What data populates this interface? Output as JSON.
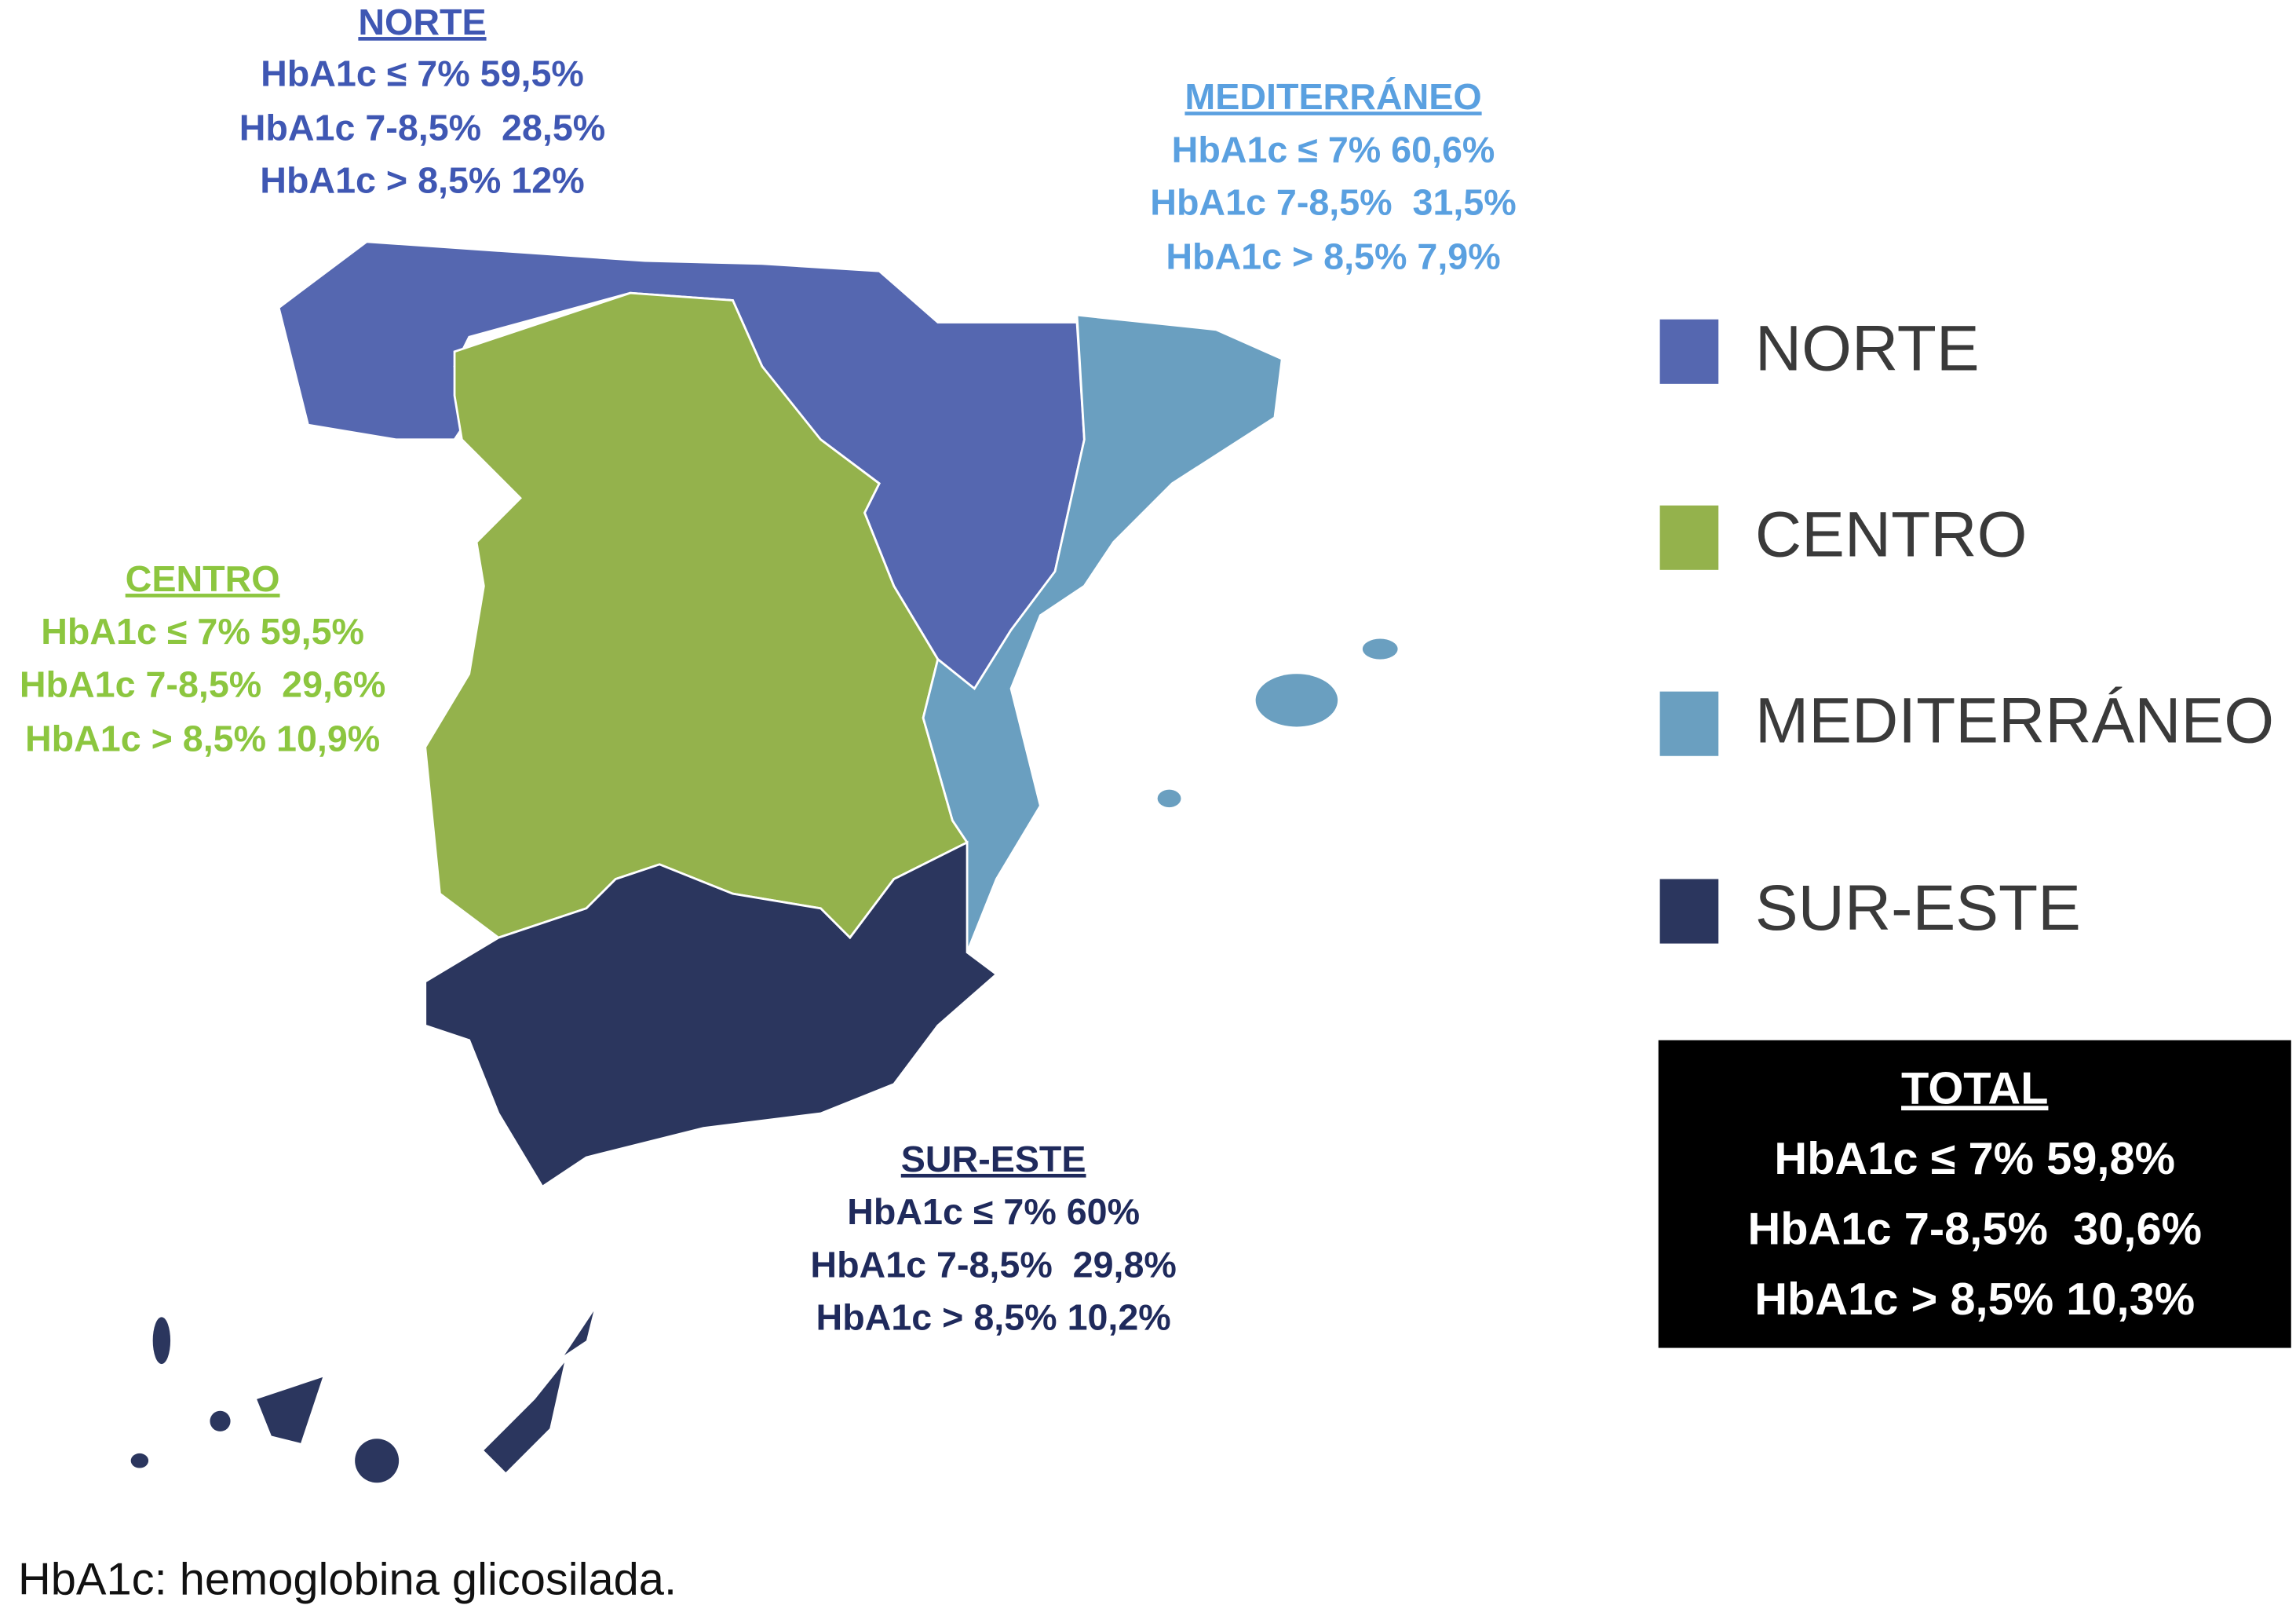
{
  "regions": [
    {
      "name": "NORTE",
      "lines": [
        "HbA1c ≤ 7% 59,5%",
        "HbA1c 7-8,5%  28,5%",
        "HbA1c > 8,5% 12%"
      ]
    },
    {
      "name": "MEDITERRÁNEO",
      "lines": [
        "HbA1c ≤ 7% 60,6%",
        "HbA1c 7-8,5%  31,5%",
        "HbA1c > 8,5% 7,9%"
      ]
    },
    {
      "name": "CENTRO",
      "lines": [
        "HbA1c ≤ 7% 59,5%",
        "HbA1c 7-8,5%  29,6%",
        "HbA1c > 8,5% 10,9%"
      ]
    },
    {
      "name": "SUR-ESTE",
      "lines": [
        "HbA1c ≤ 7% 60%",
        "HbA1c 7-8,5%  29,8%",
        "HbA1c > 8,5% 10,2%"
      ]
    }
  ],
  "legend": [
    "NORTE",
    "CENTRO",
    "MEDITERRÁNEO",
    "SUR-ESTE"
  ],
  "total": {
    "title": "TOTAL",
    "lines": [
      "HbA1c ≤ 7% 59,8%",
      "HbA1c 7-8,5%  30,6%",
      "HbA1c > 8,5% 10,3%"
    ]
  },
  "footnote": "HbA1c: hemoglobina glicosilada."
}
